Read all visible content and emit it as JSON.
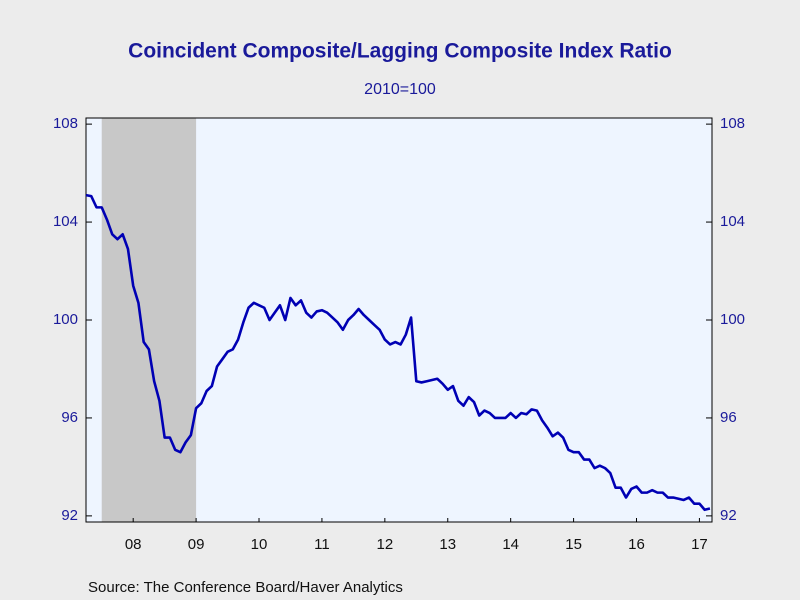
{
  "chart_data": {
    "type": "line",
    "title": "Coincident Composite/Lagging Composite Index Ratio",
    "subtitle": "2010=100",
    "source": "Source:  The Conference Board/Haver Analytics",
    "x": [
      2007.75,
      2007.833,
      2007.917,
      2008,
      2008.083,
      2008.167,
      2008.25,
      2008.333,
      2008.417,
      2008.5,
      2008.583,
      2008.667,
      2008.75,
      2008.833,
      2008.917,
      2009,
      2009.083,
      2009.167,
      2009.25,
      2009.333,
      2009.417,
      2009.5,
      2009.583,
      2009.667,
      2009.75,
      2009.833,
      2009.917,
      2010,
      2010.083,
      2010.167,
      2010.25,
      2010.333,
      2010.417,
      2010.5,
      2010.583,
      2010.667,
      2010.75,
      2010.833,
      2010.917,
      2011,
      2011.083,
      2011.167,
      2011.25,
      2011.333,
      2011.417,
      2011.5,
      2011.583,
      2011.667,
      2011.75,
      2011.833,
      2011.917,
      2012,
      2012.083,
      2012.167,
      2012.25,
      2012.333,
      2012.417,
      2012.5,
      2012.583,
      2012.667,
      2012.75,
      2012.833,
      2012.917,
      2013,
      2013.083,
      2013.167,
      2013.25,
      2013.333,
      2013.417,
      2013.5,
      2013.583,
      2013.667,
      2013.75,
      2013.833,
      2013.917,
      2014,
      2014.083,
      2014.167,
      2014.25,
      2014.333,
      2014.417,
      2014.5,
      2014.583,
      2014.667,
      2014.75,
      2014.833,
      2014.917,
      2015,
      2015.083,
      2015.167,
      2015.25,
      2015.333,
      2015.417,
      2015.5,
      2015.583,
      2015.667,
      2015.75,
      2015.833,
      2015.917,
      2016,
      2016.083,
      2016.167,
      2016.25,
      2016.333,
      2016.417,
      2016.5,
      2016.583,
      2016.667,
      2016.75,
      2016.833,
      2016.917,
      2017,
      2017.083,
      2017.167,
      2017.25,
      2017.333,
      2017.417,
      2017.5,
      2017.583,
      2017.667
    ],
    "series": [
      {
        "color": "#0000b4",
        "values": [
          105.1,
          105.06,
          104.6,
          104.6,
          104.1,
          103.5,
          103.3,
          103.5,
          102.9,
          101.4,
          100.7,
          99.1,
          98.8,
          97.5,
          96.7,
          95.2,
          95.2,
          94.7,
          94.6,
          95.0,
          95.3,
          96.4,
          96.6,
          97.1,
          97.3,
          98.1,
          98.4,
          98.7,
          98.8,
          99.2,
          99.9,
          100.5,
          100.7,
          100.6,
          100.5,
          100.0,
          100.3,
          100.6,
          100.0,
          100.9,
          100.6,
          100.8,
          100.3,
          100.1,
          100.35,
          100.4,
          100.3,
          100.1,
          99.9,
          99.6,
          100.0,
          100.2,
          100.45,
          100.2,
          100.0,
          99.8,
          99.6,
          99.2,
          99.0,
          99.1,
          99.0,
          99.4,
          100.1,
          97.5,
          97.45,
          97.5,
          97.55,
          97.6,
          97.4,
          97.15,
          97.3,
          96.7,
          96.5,
          96.85,
          96.65,
          96.1,
          96.3,
          96.2,
          96.0,
          96.0,
          96.0,
          96.2,
          96.0,
          96.2,
          96.15,
          96.35,
          96.3,
          95.9,
          95.6,
          95.25,
          95.4,
          95.2,
          94.7,
          94.6,
          94.6,
          94.3,
          94.3,
          93.95,
          94.05,
          93.95,
          93.75,
          93.15,
          93.15,
          92.75,
          93.1,
          93.2,
          92.95,
          92.95,
          93.05,
          92.95,
          92.95,
          92.75,
          92.75,
          92.7,
          92.65,
          92.75,
          92.5,
          92.5,
          92.25,
          92.3
        ]
      }
    ],
    "recession": [
      2008,
      2009.5
    ],
    "xlim": [
      2007.75,
      2017.7
    ],
    "xticks": [
      {
        "value": 2008.5,
        "label": "08"
      },
      {
        "value": 2009.5,
        "label": "09"
      },
      {
        "value": 2010.5,
        "label": "10"
      },
      {
        "value": 2011.5,
        "label": "11"
      },
      {
        "value": 2012.5,
        "label": "12"
      },
      {
        "value": 2013.5,
        "label": "13"
      },
      {
        "value": 2014.5,
        "label": "14"
      },
      {
        "value": 2015.5,
        "label": "15"
      },
      {
        "value": 2016.5,
        "label": "16"
      },
      {
        "value": 2017.5,
        "label": "17"
      }
    ],
    "ylim": [
      91.75,
      108.25
    ],
    "yticks": [
      92,
      96,
      100,
      104,
      108
    ]
  }
}
